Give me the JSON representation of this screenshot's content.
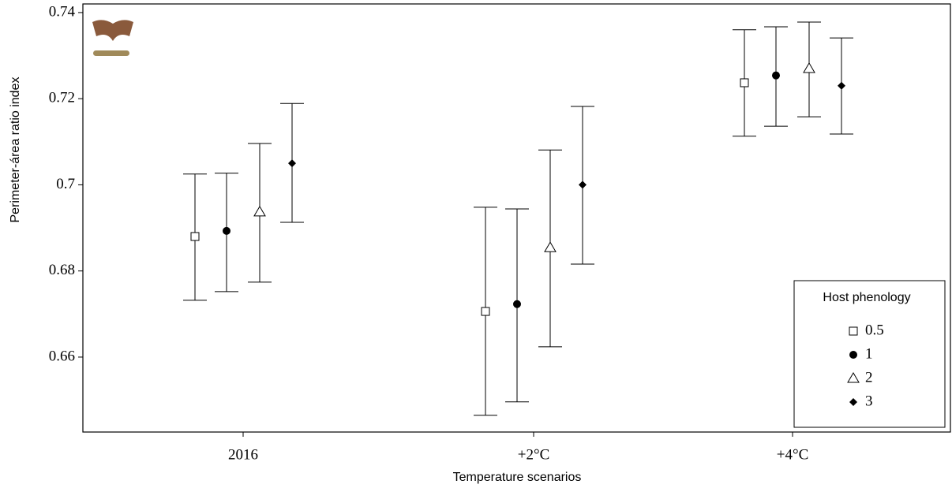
{
  "chart_data": {
    "type": "errorbar",
    "x_label": "Temperature scenarios",
    "y_label": "Perimeter-área ratio index",
    "categories": [
      "2016",
      "+2°C",
      "+4°C"
    ],
    "ylim": [
      0.6426,
      0.742
    ],
    "yticks": [
      {
        "value": 0.66,
        "label": "0.66"
      },
      {
        "value": 0.68,
        "label": "0.68"
      },
      {
        "value": 0.7,
        "label": "0.7"
      },
      {
        "value": 0.72,
        "label": "0.72"
      },
      {
        "value": 0.74,
        "label": "0.74"
      }
    ],
    "legend_title": "Host phenology",
    "legend_position": "lower right",
    "series": [
      {
        "name": "0.5",
        "marker": "square",
        "color": "#000000",
        "values": [
          0.688,
          0.6706,
          0.7237
        ],
        "lower": [
          0.6732,
          0.6465,
          0.7113
        ],
        "upper": [
          0.7025,
          0.6948,
          0.736
        ]
      },
      {
        "name": "1",
        "marker": "circle",
        "color": "#000000",
        "values": [
          0.6893,
          0.6723,
          0.7254
        ],
        "lower": [
          0.6752,
          0.6496,
          0.7136
        ],
        "upper": [
          0.7027,
          0.6944,
          0.7367
        ]
      },
      {
        "name": "2",
        "marker": "triangle",
        "color": "#000000",
        "values": [
          0.6937,
          0.6854,
          0.727
        ],
        "lower": [
          0.6774,
          0.6624,
          0.7158
        ],
        "upper": [
          0.7096,
          0.7081,
          0.7378
        ]
      },
      {
        "name": "3",
        "marker": "diamond",
        "color": "#000000",
        "values": [
          0.705,
          0.7,
          0.723
        ],
        "lower": [
          0.6913,
          0.6816,
          0.7118
        ],
        "upper": [
          0.7189,
          0.7182,
          0.7341
        ]
      }
    ]
  }
}
